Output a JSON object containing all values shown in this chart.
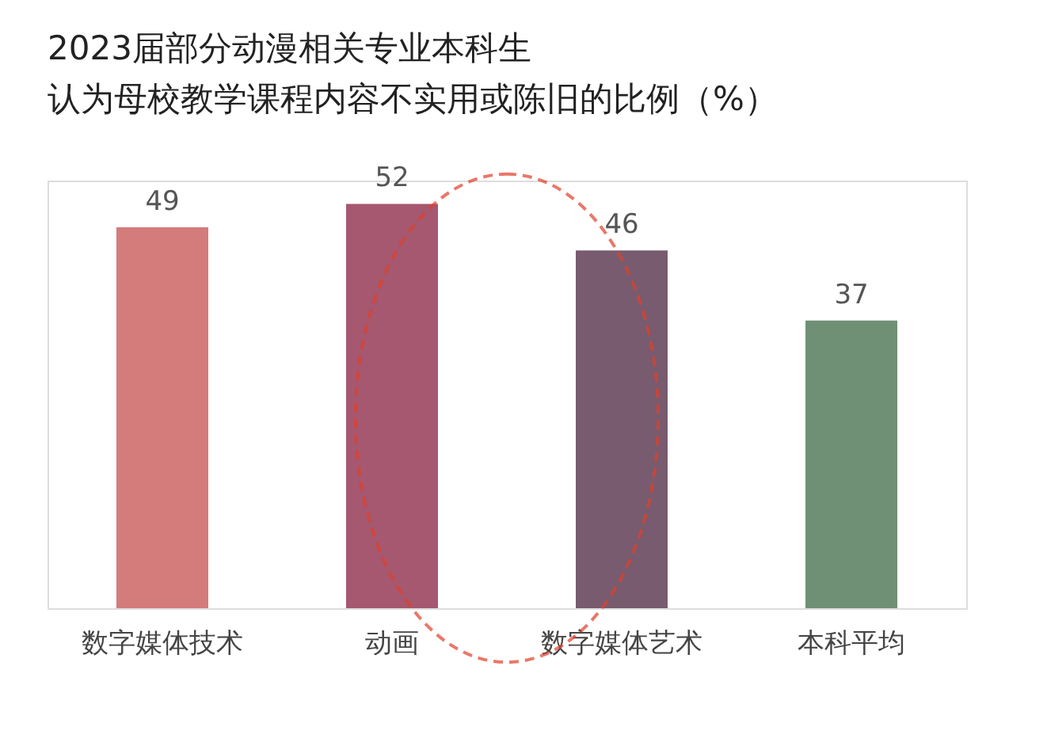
{
  "chart_data": {
    "type": "bar",
    "title": [
      "2023届部分动漫相关专业本科生",
      "认为母校教学课程内容不实用或陈旧的比例（%）"
    ],
    "categories": [
      "数字媒体技术",
      "动画",
      "数字媒体艺术",
      "本科平均"
    ],
    "values": [
      49,
      52,
      46,
      37
    ],
    "colors": [
      "#d47b7b",
      "#a5586f",
      "#785b6e",
      "#6f9075"
    ],
    "data_labels": true,
    "grid": false
  }
}
